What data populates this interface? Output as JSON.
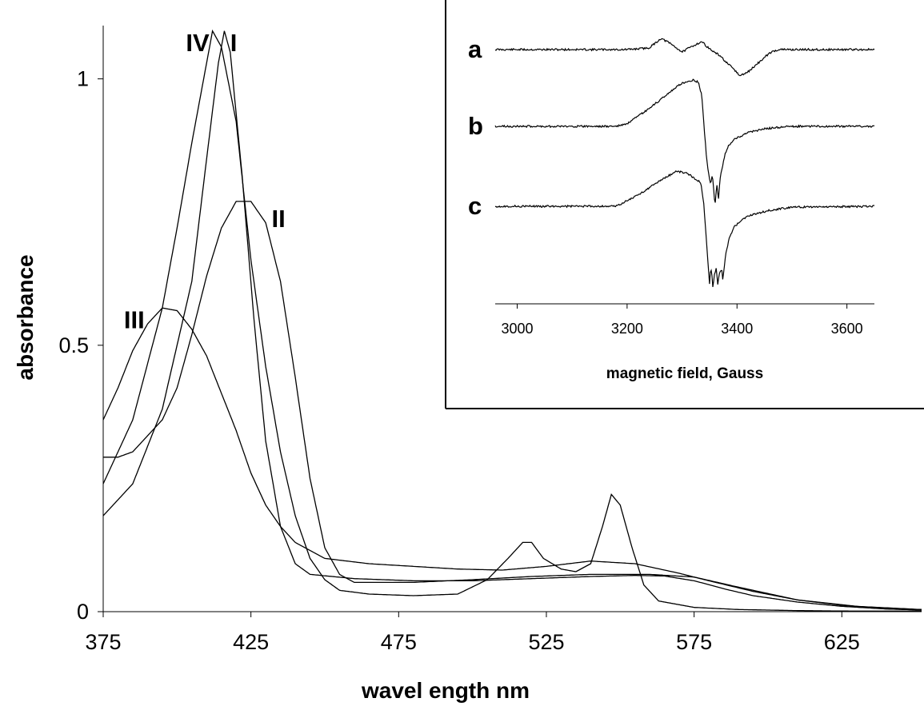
{
  "chart_data": [
    {
      "type": "line",
      "title": "",
      "xlabel": "wavel ength nm",
      "ylabel": "absorbance",
      "xlim": [
        375,
        652
      ],
      "ylim": [
        0,
        1.1
      ],
      "x_ticks": [
        375,
        425,
        475,
        525,
        575,
        625
      ],
      "y_ticks": [
        0,
        0.5,
        1
      ],
      "y_tick_labels": [
        "0",
        "0.5",
        "1"
      ],
      "grid": false,
      "series": [
        {
          "name": "I",
          "label_at": [
            418,
            1.07
          ],
          "points": [
            [
              375,
              0.18
            ],
            [
              385,
              0.24
            ],
            [
              395,
              0.38
            ],
            [
              405,
              0.62
            ],
            [
              410,
              0.85
            ],
            [
              414,
              1.03
            ],
            [
              416,
              1.09
            ],
            [
              418,
              1.05
            ],
            [
              422,
              0.82
            ],
            [
              426,
              0.55
            ],
            [
              430,
              0.32
            ],
            [
              435,
              0.16
            ],
            [
              440,
              0.09
            ],
            [
              445,
              0.07
            ],
            [
              460,
              0.062
            ],
            [
              480,
              0.058
            ],
            [
              500,
              0.058
            ],
            [
              520,
              0.062
            ],
            [
              540,
              0.066
            ],
            [
              555,
              0.068
            ],
            [
              565,
              0.067
            ],
            [
              575,
              0.058
            ],
            [
              585,
              0.043
            ],
            [
              595,
              0.03
            ],
            [
              610,
              0.018
            ],
            [
              625,
              0.01
            ],
            [
              640,
              0.005
            ],
            [
              652,
              0.003
            ]
          ]
        },
        {
          "name": "II",
          "label_at": [
            432,
            0.74
          ],
          "points": [
            [
              375,
              0.29
            ],
            [
              380,
              0.29
            ],
            [
              385,
              0.3
            ],
            [
              395,
              0.36
            ],
            [
              400,
              0.42
            ],
            [
              405,
              0.52
            ],
            [
              410,
              0.63
            ],
            [
              415,
              0.72
            ],
            [
              420,
              0.77
            ],
            [
              425,
              0.77
            ],
            [
              430,
              0.73
            ],
            [
              435,
              0.62
            ],
            [
              440,
              0.44
            ],
            [
              445,
              0.25
            ],
            [
              450,
              0.12
            ],
            [
              455,
              0.07
            ],
            [
              460,
              0.055
            ],
            [
              480,
              0.055
            ],
            [
              500,
              0.06
            ],
            [
              520,
              0.066
            ],
            [
              540,
              0.07
            ],
            [
              560,
              0.07
            ],
            [
              575,
              0.065
            ],
            [
              590,
              0.046
            ],
            [
              610,
              0.022
            ],
            [
              630,
              0.01
            ],
            [
              652,
              0.004
            ]
          ]
        },
        {
          "name": "III",
          "label_at": [
            382,
            0.55
          ],
          "points": [
            [
              375,
              0.36
            ],
            [
              380,
              0.42
            ],
            [
              385,
              0.49
            ],
            [
              390,
              0.54
            ],
            [
              395,
              0.57
            ],
            [
              400,
              0.565
            ],
            [
              405,
              0.53
            ],
            [
              410,
              0.48
            ],
            [
              415,
              0.41
            ],
            [
              420,
              0.34
            ],
            [
              425,
              0.26
            ],
            [
              430,
              0.2
            ],
            [
              435,
              0.16
            ],
            [
              440,
              0.13
            ],
            [
              450,
              0.1
            ],
            [
              465,
              0.09
            ],
            [
              480,
              0.085
            ],
            [
              495,
              0.08
            ],
            [
              510,
              0.078
            ],
            [
              525,
              0.085
            ],
            [
              540,
              0.095
            ],
            [
              555,
              0.09
            ],
            [
              570,
              0.072
            ],
            [
              580,
              0.058
            ],
            [
              595,
              0.038
            ],
            [
              610,
              0.022
            ],
            [
              625,
              0.012
            ],
            [
              640,
              0.006
            ],
            [
              652,
              0.004
            ]
          ]
        },
        {
          "name": "IV",
          "label_at": [
            403,
            1.07
          ],
          "points": [
            [
              375,
              0.24
            ],
            [
              385,
              0.36
            ],
            [
              395,
              0.57
            ],
            [
              400,
              0.72
            ],
            [
              405,
              0.88
            ],
            [
              410,
              1.03
            ],
            [
              412,
              1.09
            ],
            [
              415,
              1.06
            ],
            [
              420,
              0.92
            ],
            [
              425,
              0.66
            ],
            [
              430,
              0.46
            ],
            [
              435,
              0.3
            ],
            [
              440,
              0.18
            ],
            [
              445,
              0.1
            ],
            [
              450,
              0.06
            ],
            [
              455,
              0.04
            ],
            [
              465,
              0.033
            ],
            [
              480,
              0.03
            ],
            [
              495,
              0.033
            ],
            [
              505,
              0.06
            ],
            [
              512,
              0.1
            ],
            [
              517,
              0.13
            ],
            [
              520,
              0.13
            ],
            [
              524,
              0.1
            ],
            [
              530,
              0.08
            ],
            [
              535,
              0.075
            ],
            [
              540,
              0.09
            ],
            [
              544,
              0.16
            ],
            [
              547,
              0.22
            ],
            [
              550,
              0.2
            ],
            [
              554,
              0.12
            ],
            [
              558,
              0.05
            ],
            [
              563,
              0.02
            ],
            [
              575,
              0.008
            ],
            [
              590,
              0.004
            ],
            [
              610,
              0.002
            ],
            [
              630,
              0.001
            ],
            [
              652,
              0.001
            ]
          ]
        }
      ]
    },
    {
      "type": "line",
      "title": "",
      "xlabel": "magnetic field, Gauss",
      "ylabel": "",
      "xlim": [
        2960,
        3650
      ],
      "x_ticks": [
        3000,
        3200,
        3400,
        3600
      ],
      "grid": false,
      "series": [
        {
          "name": "a",
          "baseline": 0,
          "noise": 1.2,
          "seed": 11,
          "points": [
            [
              2960,
              0
            ],
            [
              3200,
              0
            ],
            [
              3240,
              2
            ],
            [
              3262,
              14
            ],
            [
              3280,
              7
            ],
            [
              3300,
              -3
            ],
            [
              3318,
              4
            ],
            [
              3336,
              10
            ],
            [
              3348,
              2
            ],
            [
              3360,
              -4
            ],
            [
              3370,
              -8
            ],
            [
              3380,
              -16
            ],
            [
              3395,
              -25
            ],
            [
              3405,
              -33
            ],
            [
              3420,
              -28
            ],
            [
              3440,
              -16
            ],
            [
              3460,
              -4
            ],
            [
              3475,
              0
            ],
            [
              3650,
              0
            ]
          ]
        },
        {
          "name": "b",
          "baseline": 0,
          "noise": 1.2,
          "seed": 23,
          "points": [
            [
              2960,
              0
            ],
            [
              3180,
              0
            ],
            [
              3200,
              3
            ],
            [
              3240,
              22
            ],
            [
              3280,
              44
            ],
            [
              3300,
              54
            ],
            [
              3320,
              58
            ],
            [
              3330,
              55
            ],
            [
              3336,
              38
            ],
            [
              3340,
              0
            ],
            [
              3344,
              -35
            ],
            [
              3348,
              -58
            ],
            [
              3352,
              -72
            ],
            [
              3355,
              -60
            ],
            [
              3357,
              -74
            ],
            [
              3360,
              -100
            ],
            [
              3362,
              -82
            ],
            [
              3364,
              -72
            ],
            [
              3366,
              -94
            ],
            [
              3368,
              -75
            ],
            [
              3370,
              -62
            ],
            [
              3372,
              -56
            ],
            [
              3378,
              -35
            ],
            [
              3385,
              -24
            ],
            [
              3395,
              -16
            ],
            [
              3420,
              -8
            ],
            [
              3450,
              -3
            ],
            [
              3500,
              0
            ],
            [
              3650,
              0
            ]
          ]
        },
        {
          "name": "c",
          "baseline": 0,
          "noise": 1.2,
          "seed": 37,
          "points": [
            [
              2960,
              0
            ],
            [
              3180,
              0
            ],
            [
              3220,
              14
            ],
            [
              3260,
              32
            ],
            [
              3290,
              44
            ],
            [
              3310,
              41
            ],
            [
              3325,
              34
            ],
            [
              3334,
              30
            ],
            [
              3340,
              0
            ],
            [
              3344,
              -40
            ],
            [
              3348,
              -80
            ],
            [
              3350,
              -96
            ],
            [
              3352,
              -78
            ],
            [
              3354,
              -84
            ],
            [
              3356,
              -100
            ],
            [
              3359,
              -86
            ],
            [
              3362,
              -78
            ],
            [
              3365,
              -98
            ],
            [
              3368,
              -84
            ],
            [
              3372,
              -78
            ],
            [
              3374,
              -92
            ],
            [
              3377,
              -74
            ],
            [
              3380,
              -58
            ],
            [
              3386,
              -40
            ],
            [
              3395,
              -26
            ],
            [
              3410,
              -16
            ],
            [
              3430,
              -10
            ],
            [
              3460,
              -5
            ],
            [
              3500,
              -1
            ],
            [
              3650,
              0
            ]
          ]
        }
      ]
    }
  ]
}
